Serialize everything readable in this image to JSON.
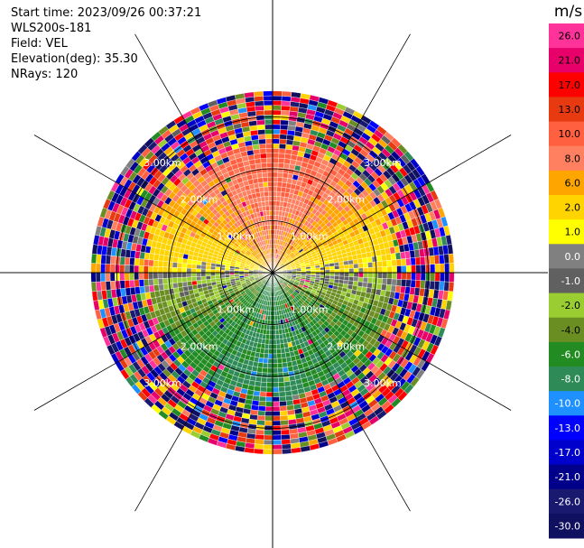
{
  "header": {
    "start_time": "Start time: 2023/09/26 00:37:21",
    "instrument": "WLS200s-181",
    "field": "Field: VEL",
    "elevation": "Elevation(deg): 35.30",
    "nrays": "NRays: 120"
  },
  "colorbar": {
    "unit": "m/s",
    "ticks": [
      "26.0",
      "21.0",
      "17.0",
      "13.0",
      "10.0",
      "8.0",
      "6.0",
      "2.0",
      "1.0",
      "0.0",
      "-1.0",
      "-2.0",
      "-4.0",
      "-6.0",
      "-8.0",
      "-10.0",
      "-13.0",
      "-17.0",
      "-21.0",
      "-26.0",
      "-30.0"
    ],
    "colors": [
      "#ff3399",
      "#e8006a",
      "#ff0000",
      "#e83a10",
      "#ff6040",
      "#ff8060",
      "#ffa500",
      "#ffd400",
      "#ffff00",
      "#808080",
      "#606060",
      "#9acd32",
      "#6b8e23",
      "#228b22",
      "#2e8b57",
      "#1e90ff",
      "#0000ff",
      "#0000cd",
      "#00008b",
      "#191970",
      "#101060"
    ]
  },
  "range_rings": [
    {
      "label_outer": "1.00km",
      "label_inner": "1.00km"
    },
    {
      "label_outer": "2.00km",
      "label_inner": "2.00km"
    },
    {
      "label_outer": "3.00km",
      "label_inner": "3.00km"
    }
  ],
  "chart_data": {
    "type": "heatmap",
    "projection": "PPI",
    "field": "VEL",
    "unit": "m/s",
    "nrays": 120,
    "elevation_deg": 35.3,
    "range_rings_km": [
      1.0,
      2.0,
      3.0
    ],
    "max_range_km": 3.5,
    "color_levels": [
      -30,
      -26,
      -21,
      -17,
      -13,
      -10,
      -8,
      -6,
      -4,
      -2,
      -1,
      0,
      1,
      2,
      6,
      8,
      10,
      13,
      17,
      21,
      26
    ],
    "velocity_pattern": {
      "north_sector_ms": 8,
      "south_sector_ms": -6,
      "near_horizontal_ms": 0,
      "noise_beyond_km": 2.4
    }
  }
}
